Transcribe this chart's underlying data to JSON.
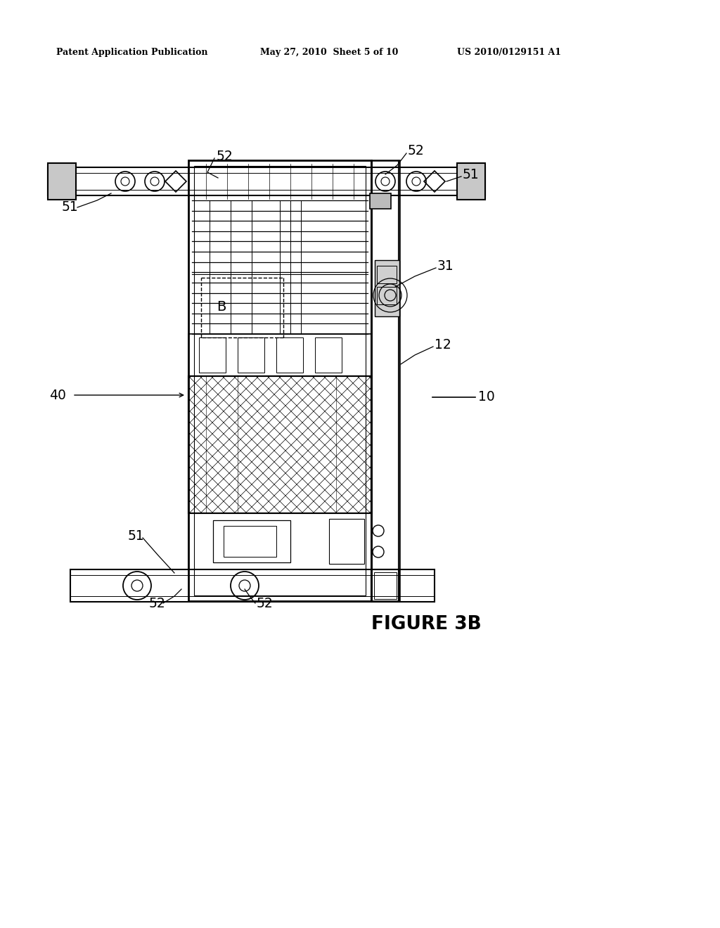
{
  "header_left": "Patent Application Publication",
  "header_mid": "May 27, 2010  Sheet 5 of 10",
  "header_right": "US 2010/0129151 A1",
  "figure_label": "FIGURE 3B",
  "bg_color": "#ffffff",
  "line_color": "#000000"
}
